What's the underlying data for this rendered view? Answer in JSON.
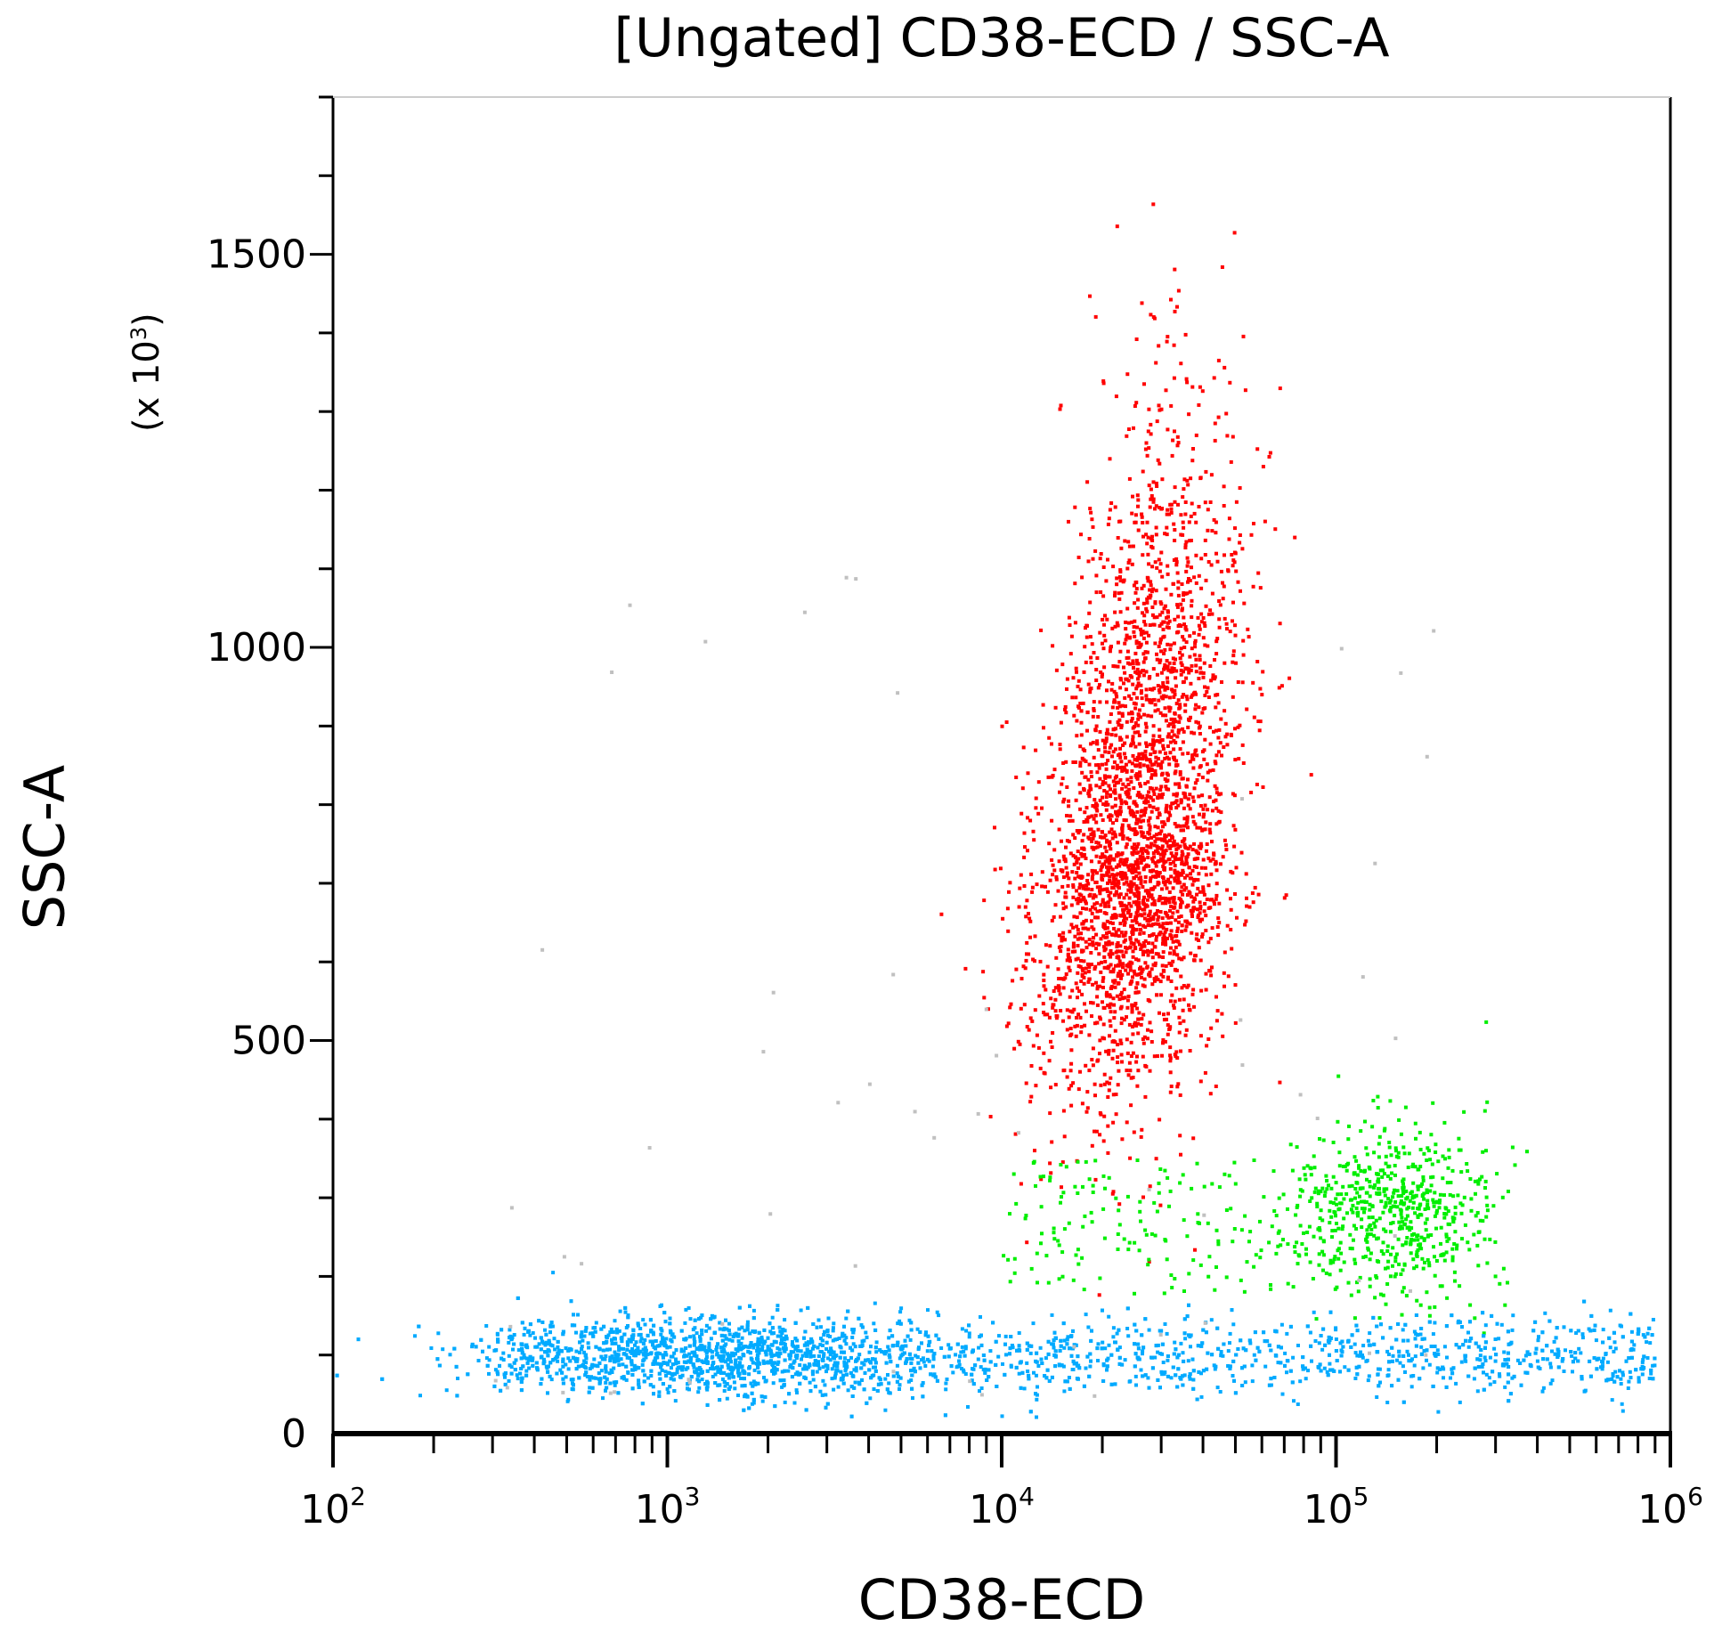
{
  "chart_data": {
    "type": "scatter",
    "title": "[Ungated] CD38-ECD / SSC-A",
    "xlabel": "CD38-ECD",
    "ylabel": "SSC-A",
    "y_multiplier": "(x 10",
    "y_multiplier_exp": "3",
    "y_multiplier_close": ")",
    "x_scale": "log",
    "xlim": [
      100,
      1000000
    ],
    "ylim": [
      0,
      1700
    ],
    "x_ticks": [
      {
        "base": "10",
        "exp": "2",
        "value": 100
      },
      {
        "base": "10",
        "exp": "3",
        "value": 1000
      },
      {
        "base": "10",
        "exp": "4",
        "value": 10000
      },
      {
        "base": "10",
        "exp": "5",
        "value": 100000
      },
      {
        "base": "10",
        "exp": "6",
        "value": 1000000
      }
    ],
    "y_ticks": [
      {
        "label": "0",
        "value": 0
      },
      {
        "label": "500",
        "value": 500
      },
      {
        "label": "1000",
        "value": 1000
      },
      {
        "label": "1500",
        "value": 1500
      }
    ],
    "grid": false,
    "legend": "none",
    "populations": [
      {
        "color": "#ff0000",
        "x_center": 25000,
        "y_center": 750,
        "x_spread_decades": 0.14,
        "y_spread": 190,
        "approx_events": 3200
      },
      {
        "color": "#00ee00",
        "x_center": 150000,
        "y_center": 290,
        "x_spread_decades": 0.14,
        "y_spread": 55,
        "approx_events": 800
      },
      {
        "color": "#00aaff",
        "x_range": [
          300,
          900000
        ],
        "y_center": 100,
        "y_spread": 25,
        "approx_events": 3500
      },
      {
        "color": "#c0c0c0",
        "x_range": [
          300,
          200000
        ],
        "y_range": [
          50,
          1100
        ],
        "approx_events": 60
      }
    ]
  }
}
